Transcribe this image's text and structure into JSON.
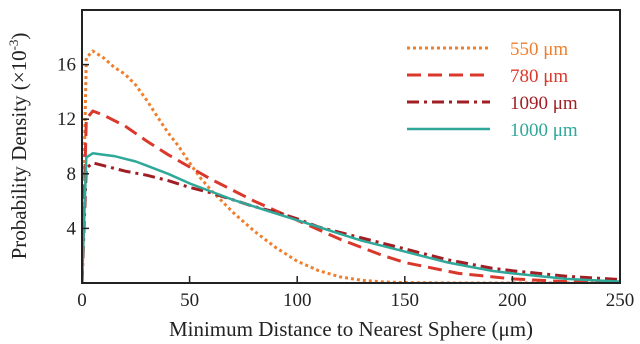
{
  "chart_data": {
    "type": "line",
    "xlabel": "Minimum Distance to Nearest Sphere (μm)",
    "ylabel": "Probability Density (×10",
    "ylabel_exponent": "-3",
    "ylabel_close": ")",
    "xlim": [
      0,
      250
    ],
    "ylim": [
      0,
      20
    ],
    "xticks": [
      0,
      50,
      100,
      150,
      200,
      250
    ],
    "yticks": [
      4,
      8,
      12,
      16
    ],
    "grid": false,
    "legend_position": "top-right",
    "series": [
      {
        "name": "550 μm",
        "color": "#F07F2D",
        "dash": "dotted",
        "x": [
          0,
          2,
          5,
          10,
          15,
          20,
          25,
          30,
          35,
          40,
          45,
          50,
          55,
          60,
          65,
          70,
          75,
          80,
          90,
          100,
          110,
          120,
          130,
          140,
          150,
          175,
          200,
          250
        ],
        "y": [
          0,
          16.5,
          17.0,
          16.5,
          15.8,
          15.3,
          14.5,
          13.4,
          12.2,
          11.0,
          10.0,
          8.8,
          7.7,
          6.8,
          6.0,
          5.2,
          4.5,
          3.8,
          2.6,
          1.6,
          0.9,
          0.45,
          0.2,
          0.08,
          0.03,
          0.0,
          0.0,
          0.0
        ]
      },
      {
        "name": "780 μm",
        "color": "#D9382B",
        "dash": "dashed",
        "x": [
          0,
          2,
          5,
          10,
          20,
          30,
          40,
          50,
          60,
          70,
          80,
          90,
          100,
          110,
          120,
          130,
          140,
          150,
          175,
          200,
          225,
          250
        ],
        "y": [
          0,
          12.0,
          12.6,
          12.3,
          11.5,
          10.4,
          9.4,
          8.5,
          7.6,
          6.8,
          6.0,
          5.3,
          4.6,
          3.9,
          3.2,
          2.6,
          2.0,
          1.5,
          0.7,
          0.3,
          0.1,
          0.0
        ]
      },
      {
        "name": "1090 μm",
        "color": "#A11F24",
        "dash": "dashdot",
        "x": [
          0,
          2,
          5,
          10,
          20,
          30,
          40,
          50,
          60,
          70,
          80,
          90,
          100,
          110,
          120,
          130,
          140,
          150,
          160,
          170,
          180,
          190,
          200,
          225,
          250
        ],
        "y": [
          0,
          8.4,
          8.8,
          8.6,
          8.2,
          7.9,
          7.5,
          7.0,
          6.6,
          6.1,
          5.6,
          5.2,
          4.7,
          4.1,
          3.7,
          3.3,
          2.9,
          2.5,
          2.1,
          1.7,
          1.4,
          1.1,
          0.9,
          0.5,
          0.25
        ]
      },
      {
        "name": "1000 μm",
        "color": "#2FA89A",
        "dash": "solid",
        "x": [
          0,
          2,
          5,
          10,
          15,
          20,
          25,
          30,
          35,
          40,
          50,
          60,
          70,
          80,
          90,
          100,
          110,
          120,
          130,
          140,
          150,
          160,
          170,
          180,
          190,
          200,
          225,
          250
        ],
        "y": [
          0,
          9.2,
          9.5,
          9.4,
          9.3,
          9.1,
          8.9,
          8.6,
          8.3,
          8.0,
          7.3,
          6.7,
          6.1,
          5.6,
          5.1,
          4.6,
          4.1,
          3.6,
          3.1,
          2.7,
          2.3,
          1.9,
          1.5,
          1.2,
          0.9,
          0.7,
          0.3,
          0.1
        ]
      }
    ]
  }
}
